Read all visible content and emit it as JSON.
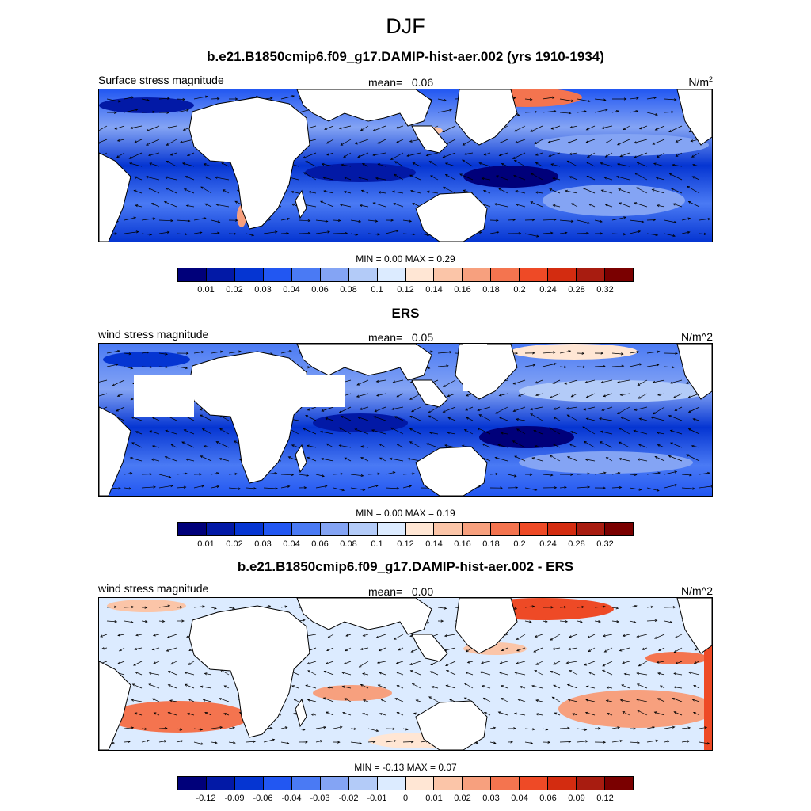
{
  "figure": {
    "title": "DJF"
  },
  "panels": [
    {
      "main_title": "b.e21.B1850cmip6.f09_g17.DAMIP-hist-aer.002 (yrs 1910-1934)",
      "left_string": "Surface stress magnitude",
      "mean_label": "mean=",
      "mean_value": "0.06",
      "units_base": "N/m",
      "units_sup": "2",
      "minmax": "MIN =   0.00 MAX =   0.29",
      "colorbar_labels": [
        "0.01",
        "0.02",
        "0.03",
        "0.04",
        "0.06",
        "0.08",
        "0.1",
        "0.12",
        "0.14",
        "0.16",
        "0.18",
        "0.2",
        "0.24",
        "0.28",
        "0.32"
      ],
      "colorbar_colors": [
        "#00007a",
        "#0219a6",
        "#0535d2",
        "#2257f2",
        "#4a7af4",
        "#84a4f4",
        "#b3cbf8",
        "#dcebff",
        "#ffe6d4",
        "#fbc5a8",
        "#f7a07e",
        "#f4744f",
        "#ee4a26",
        "#d32c10",
        "#a81c10",
        "#7a0000"
      ]
    },
    {
      "main_title": "ERS",
      "left_string": "wind stress magnitude",
      "mean_label": "mean=",
      "mean_value": "0.05",
      "units_base": "N/m^2",
      "units_sup": "",
      "minmax": "MIN =   0.00 MAX =   0.19",
      "colorbar_labels": [
        "0.01",
        "0.02",
        "0.03",
        "0.04",
        "0.06",
        "0.08",
        "0.1",
        "0.12",
        "0.14",
        "0.16",
        "0.18",
        "0.2",
        "0.24",
        "0.28",
        "0.32"
      ],
      "colorbar_colors": [
        "#00007a",
        "#0219a6",
        "#0535d2",
        "#2257f2",
        "#4a7af4",
        "#84a4f4",
        "#b3cbf8",
        "#dcebff",
        "#ffe6d4",
        "#fbc5a8",
        "#f7a07e",
        "#f4744f",
        "#ee4a26",
        "#d32c10",
        "#a81c10",
        "#7a0000"
      ]
    },
    {
      "main_title": "b.e21.B1850cmip6.f09_g17.DAMIP-hist-aer.002 - ERS",
      "left_string": "wind stress magnitude",
      "mean_label": "mean=",
      "mean_value": "0.00",
      "units_base": "N/m^2",
      "units_sup": "",
      "minmax": "MIN =  -0.13 MAX =   0.07",
      "colorbar_labels": [
        "-0.12",
        "-0.09",
        "-0.06",
        "-0.04",
        "-0.03",
        "-0.02",
        "-0.01",
        "0",
        "0.01",
        "0.02",
        "0.03",
        "0.04",
        "0.06",
        "0.09",
        "0.12"
      ],
      "colorbar_colors": [
        "#00007a",
        "#0219a6",
        "#0535d2",
        "#2257f2",
        "#4a7af4",
        "#84a4f4",
        "#b3cbf8",
        "#dcebff",
        "#ffe6d4",
        "#fbc5a8",
        "#f7a07e",
        "#f4744f",
        "#ee4a26",
        "#d32c10",
        "#a81c10",
        "#7a0000"
      ]
    }
  ],
  "map": {
    "projection": "cylindrical equidistant",
    "lon_range": [
      -80,
      250
    ],
    "lat_range": [
      -52,
      52
    ],
    "land_color": "#ffffff",
    "vectors": "wind stress arrows"
  }
}
